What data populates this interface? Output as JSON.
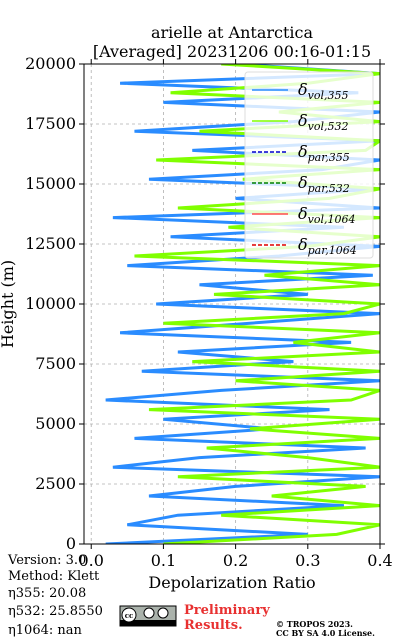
{
  "chart_data": {
    "type": "line",
    "title": "arielle at Antarctica",
    "subtitle": "[Averaged] 20231206 00:16-01:15",
    "xlabel": "Depolarization Ratio",
    "ylabel": "Height (m)",
    "xlim": [
      -0.01,
      0.4
    ],
    "ylim": [
      0,
      20000
    ],
    "xticks": [
      {
        "value": 0,
        "label": "0.0"
      },
      0.1,
      0.2,
      0.3,
      0.4
    ],
    "yticks": [
      0,
      2500,
      5000,
      7500,
      10000,
      12500,
      15000,
      17500,
      20000
    ],
    "grid": true,
    "legend_loc": "upper right",
    "legend_symbol": "δ",
    "y": [
      0,
      400,
      800,
      1200,
      1600,
      2000,
      2400,
      2800,
      3200,
      3600,
      4000,
      4400,
      4800,
      5200,
      5600,
      6000,
      6400,
      6800,
      7200,
      7600,
      8000,
      8400,
      8800,
      9200,
      9600,
      10000,
      10400,
      10800,
      11200,
      11600,
      12000,
      12400,
      12800,
      13200,
      13600,
      14000,
      14400,
      14800,
      15200,
      15600,
      16000,
      16400,
      16800,
      17200,
      17600,
      18000,
      18400,
      18800,
      19200,
      19600,
      20000
    ],
    "series": [
      {
        "name": "vol,355",
        "color": "#2a8cff",
        "dash": false,
        "values": [
          0.02,
          0.3,
          0.05,
          0.12,
          0.35,
          0.08,
          0.2,
          0.4,
          0.03,
          0.15,
          0.38,
          0.06,
          0.25,
          0.1,
          0.33,
          0.02,
          0.18,
          0.4,
          0.07,
          0.28,
          0.12,
          0.36,
          0.04,
          0.22,
          0.4,
          0.09,
          0.3,
          0.15,
          0.39,
          0.05,
          0.26,
          0.4,
          0.11,
          0.35,
          0.03,
          0.4,
          0.2,
          0.4,
          0.08,
          0.32,
          0.4,
          0.14,
          0.4,
          0.06,
          0.28,
          0.4,
          0.1,
          0.37,
          0.04,
          0.4,
          0.2
        ]
      },
      {
        "name": "vol,532",
        "color": "#80ff00",
        "dash": false,
        "values": [
          0.1,
          0.34,
          0.4,
          0.18,
          0.4,
          0.25,
          0.38,
          0.12,
          0.4,
          0.3,
          0.16,
          0.4,
          0.22,
          0.4,
          0.08,
          0.36,
          0.4,
          0.2,
          0.4,
          0.14,
          0.4,
          0.28,
          0.4,
          0.1,
          0.35,
          0.4,
          0.17,
          0.4,
          0.24,
          0.4,
          0.06,
          0.3,
          0.4,
          0.19,
          0.4,
          0.12,
          0.33,
          0.4,
          0.21,
          0.4,
          0.09,
          0.38,
          0.4,
          0.15,
          0.4,
          0.26,
          0.4,
          0.11,
          0.3,
          0.4,
          0.18
        ]
      },
      {
        "name": "par,355",
        "color": "#0000cc",
        "dash": true,
        "values": [
          null,
          null,
          null,
          null,
          null,
          null,
          null,
          null,
          null,
          null,
          null,
          null,
          null,
          null,
          null,
          null,
          null,
          null,
          null,
          null,
          null,
          null,
          null,
          null,
          null,
          null,
          null,
          null,
          null,
          null,
          null,
          null,
          null,
          null,
          null,
          null,
          null,
          null,
          null,
          null,
          null,
          null,
          null,
          null,
          null,
          null,
          null,
          null,
          null,
          null,
          null
        ]
      },
      {
        "name": "par,532",
        "color": "#008000",
        "dash": true,
        "values": [
          null,
          null,
          null,
          null,
          null,
          null,
          null,
          null,
          null,
          null,
          null,
          null,
          null,
          null,
          null,
          null,
          null,
          null,
          null,
          null,
          null,
          null,
          null,
          null,
          null,
          null,
          null,
          null,
          null,
          null,
          null,
          null,
          null,
          null,
          null,
          null,
          null,
          null,
          null,
          null,
          null,
          null,
          null,
          null,
          null,
          null,
          null,
          null,
          null,
          null,
          null
        ]
      },
      {
        "name": "vol,1064",
        "color": "#ff4d4d",
        "dash": false,
        "values": [
          null,
          null,
          null,
          null,
          null,
          null,
          null,
          null,
          null,
          null,
          null,
          null,
          null,
          null,
          null,
          null,
          null,
          null,
          null,
          null,
          null,
          null,
          null,
          null,
          null,
          null,
          null,
          null,
          null,
          null,
          null,
          null,
          null,
          null,
          null,
          null,
          null,
          null,
          null,
          null,
          null,
          null,
          null,
          null,
          null,
          null,
          null,
          null,
          null,
          null,
          null
        ]
      },
      {
        "name": "par,1064",
        "color": "#e00000",
        "dash": true,
        "values": [
          null,
          null,
          null,
          null,
          null,
          null,
          null,
          null,
          null,
          null,
          null,
          null,
          null,
          null,
          null,
          null,
          null,
          null,
          null,
          null,
          null,
          null,
          null,
          null,
          null,
          null,
          null,
          null,
          null,
          null,
          null,
          null,
          null,
          null,
          null,
          null,
          null,
          null,
          null,
          null,
          null,
          null,
          null,
          null,
          null,
          null,
          null,
          null,
          null,
          null,
          null
        ]
      }
    ],
    "annotations": [
      "Version: 3.0",
      "Method: Klett",
      "η355:  20.08",
      "η532: 25.8550",
      "η1064:    nan"
    ],
    "badge": [
      "Preliminary",
      "Results."
    ],
    "copyright": [
      "© TROPOS 2023.",
      "CC BY SA 4.0 License."
    ]
  }
}
